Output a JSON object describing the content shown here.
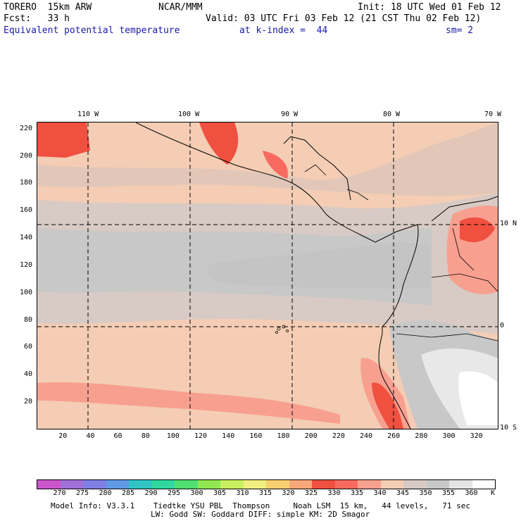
{
  "header": {
    "model": "TORERO  15km ARW",
    "org": "NCAR/MMM",
    "init": "Init: 18 UTC Wed 01 Feb 12",
    "fcst": "Fcst:   33 h",
    "valid": "Valid: 03 UTC Fri 03 Feb 12 (21 CST Thu 02 Feb 12)",
    "field": "Equivalent potential temperature",
    "level": "at k-index =  44",
    "smooth": "sm= 2"
  },
  "map": {
    "lon_labels": [
      "110 W",
      "100 W",
      "90 W",
      "80 W",
      "70 W"
    ],
    "lat_labels": [
      "10 N",
      "0",
      "10 S"
    ],
    "x_ticks": [
      "20",
      "40",
      "60",
      "80",
      "100",
      "120",
      "140",
      "160",
      "180",
      "200",
      "220",
      "240",
      "260",
      "280",
      "300",
      "320"
    ],
    "y_ticks": [
      "220",
      "200",
      "180",
      "160",
      "140",
      "120",
      "100",
      "80",
      "60",
      "40",
      "20"
    ],
    "x_range": [
      1,
      335
    ],
    "y_range": [
      1,
      225
    ]
  },
  "colorbar": {
    "labels": [
      "270",
      "275",
      "280",
      "285",
      "290",
      "295",
      "300",
      "305",
      "310",
      "315",
      "320",
      "325",
      "330",
      "335",
      "340",
      "345",
      "350",
      "355",
      "360"
    ],
    "unit": "K",
    "colors": [
      "#cc55cc",
      "#a070d8",
      "#7f7fe6",
      "#5f99e6",
      "#30c4c4",
      "#30d8a0",
      "#50e070",
      "#90e850",
      "#c8f060",
      "#f0f080",
      "#f8d070",
      "#f8a878",
      "#f05040",
      "#f86a60",
      "#f8a090",
      "#f4cdb4",
      "#d8cac4",
      "#c8c8c8",
      "#e4e4e4",
      "#ffffff"
    ]
  },
  "footer": {
    "line1": "Model Info: V3.3.1    Tiedtke YSU PBL  Thompson     Noah LSM  15 km,   44 levels,   71 sec",
    "line2": "LW: Godd SW: Goddard DIFF: simple KM: 2D Smagor"
  }
}
